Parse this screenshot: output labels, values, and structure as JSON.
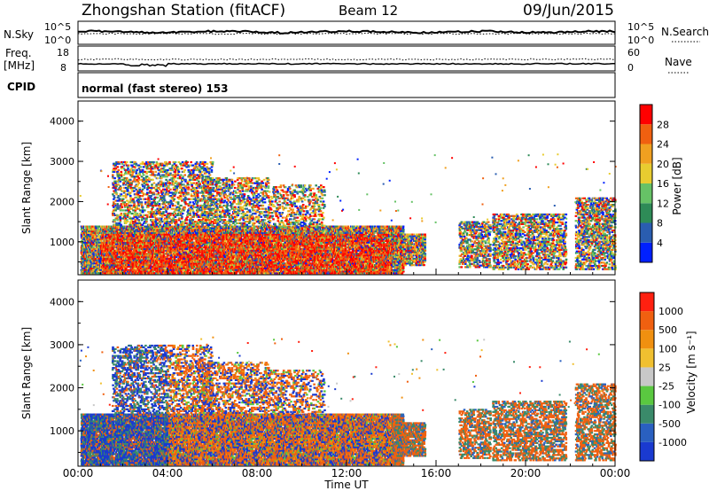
{
  "header": {
    "station": "Zhongshan Station (fitACF)",
    "beam": "Beam 12",
    "date": "09/Jun/2015"
  },
  "strips": {
    "sky": {
      "label": "N.Sky",
      "left_ticks": [
        "10^5",
        "10^0"
      ],
      "right_ticks": [
        "10^5",
        "10^0"
      ],
      "right_label": "N.Search"
    },
    "freq": {
      "label_line1": "Freq.",
      "label_line2": "[MHz]",
      "left_ticks": [
        "18",
        "8"
      ],
      "right_ticks": [
        "60",
        "0"
      ],
      "right_label": "Nave"
    },
    "cpid": {
      "label": "CPID",
      "text": "normal (fast stereo) 153"
    }
  },
  "chart_data": [
    {
      "type": "heatmap",
      "quantity": "Power",
      "ylabel": "Slant Range [km]",
      "ylim": [
        180,
        4500
      ],
      "yticks": [
        1000,
        2000,
        3000,
        4000
      ],
      "xlabel": "Time UT",
      "xlim": [
        0,
        24
      ],
      "xticks": [
        "00:00",
        "04:00",
        "08:00",
        "12:00",
        "16:00",
        "20:00",
        "00:00"
      ],
      "colorbar": {
        "label": "Power [dB]",
        "ticks": [
          "4",
          "8",
          "12",
          "16",
          "20",
          "24",
          "28"
        ],
        "colors": [
          "#0020ff",
          "#2a5db0",
          "#2e8b57",
          "#66c266",
          "#e8cc30",
          "#f0a020",
          "#f06010",
          "#ff0000"
        ]
      }
    },
    {
      "type": "heatmap",
      "quantity": "Velocity",
      "ylabel": "Slant Range [km]",
      "ylim": [
        180,
        4500
      ],
      "yticks": [
        1000,
        2000,
        3000,
        4000
      ],
      "xlabel": "Time UT",
      "xlim": [
        0,
        24
      ],
      "xticks": [
        "00:00",
        "04:00",
        "08:00",
        "12:00",
        "16:00",
        "20:00",
        "00:00"
      ],
      "colorbar": {
        "label": "Velocity [m s⁻¹]",
        "ticks": [
          "1000",
          "500",
          "100",
          "25",
          "-25",
          "-100",
          "-500",
          "-1000"
        ],
        "colors": [
          "#1a3ad0",
          "#2a60c0",
          "#3a8a6a",
          "#5ac840",
          "#c8c8c8",
          "#f0c030",
          "#f09010",
          "#f06010",
          "#ff2010"
        ]
      }
    }
  ],
  "x_axis_title": "Time UT"
}
